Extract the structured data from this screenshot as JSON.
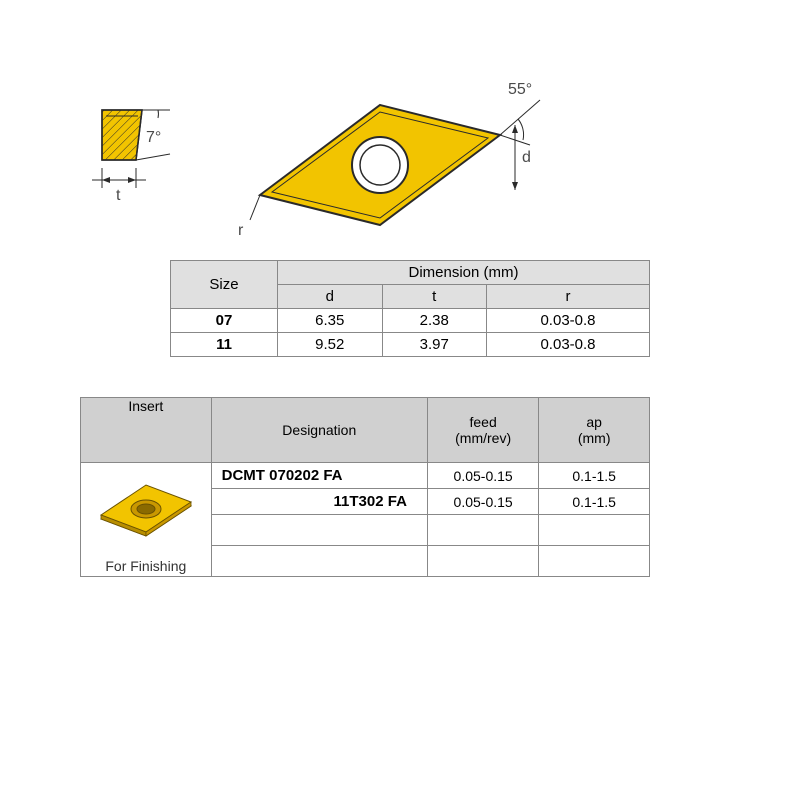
{
  "diagram": {
    "angle_side": "7°",
    "angle_top": "55°",
    "label_t": "t",
    "label_d": "d",
    "label_r": "r",
    "insert_fill": "#f2c400",
    "insert_stroke": "#2a2a2a",
    "hatch_stroke": "#2a2a2a"
  },
  "size_table": {
    "header_size": "Size",
    "header_dim": "Dimension (mm)",
    "col_d": "d",
    "col_t": "t",
    "col_r": "r",
    "rows": [
      {
        "size": "07",
        "d": "6.35",
        "t": "2.38",
        "r": "0.03-0.8"
      },
      {
        "size": "11",
        "d": "9.52",
        "t": "3.97",
        "r": "0.03-0.8"
      }
    ]
  },
  "insert_table": {
    "header_insert": "Insert",
    "header_desig": "Designation",
    "header_feed": "feed\n(mm/rev)",
    "header_ap": "ap\n(mm)",
    "finishing_label": "For Finishing",
    "rows": [
      {
        "desig": "DCMT 070202 FA",
        "feed": "0.05-0.15",
        "ap": "0.1-1.5",
        "full": true
      },
      {
        "desig": "11T302 FA",
        "feed": "0.05-0.15",
        "ap": "0.1-1.5",
        "full": false
      }
    ]
  },
  "colors": {
    "table_header_bg": "#e0e0e0",
    "table_header_bg2": "#d0d0d0",
    "border": "#888888",
    "text": "#333333"
  }
}
